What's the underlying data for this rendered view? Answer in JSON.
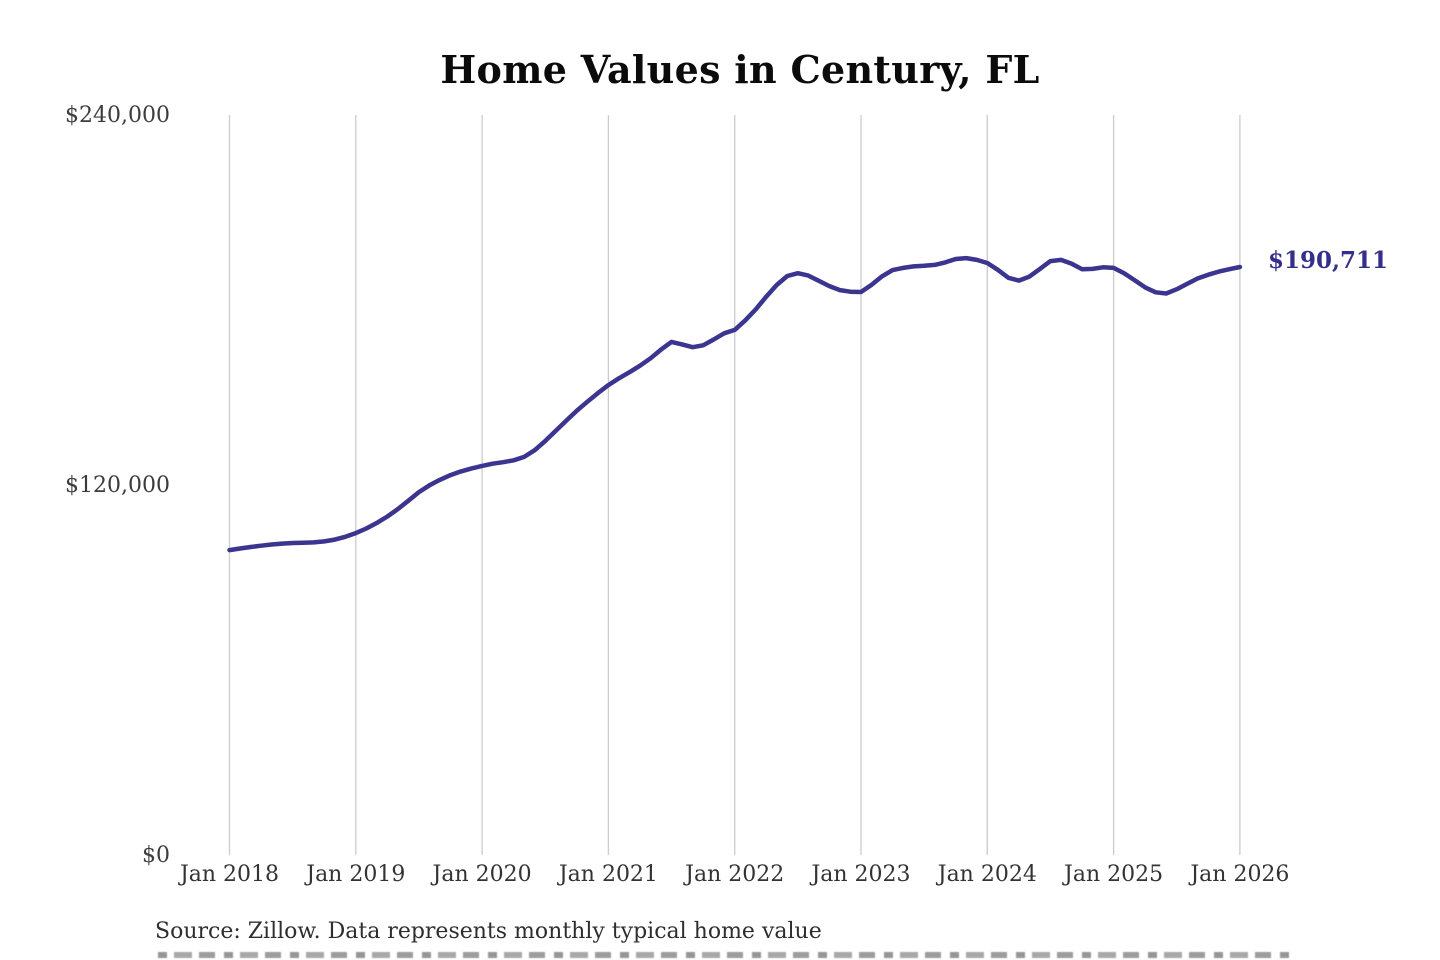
{
  "title": "Home Values in Century, FL",
  "footer": {
    "source_note": "Source: Zillow. Data represents monthly typical home value",
    "second_line_partially_visible": true
  },
  "colors": {
    "line": "#3c3590",
    "end_label": "#352f8c",
    "grid": "#cccccc",
    "title_text": "#0b0b0b",
    "axis_text": "#3c3c3c",
    "source_text": "#2e2e2e",
    "background": "#ffffff"
  },
  "chart_data": {
    "type": "line",
    "title": "Home Values in Century, FL",
    "xlabel": "",
    "ylabel": "",
    "x_start": "Jan 2018",
    "x_end": "Jan 2026",
    "frequency": "monthly",
    "x_tick_labels": [
      "Jan 2018",
      "Jan 2019",
      "Jan 2020",
      "Jan 2021",
      "Jan 2022",
      "Jan 2023",
      "Jan 2024",
      "Jan 2025",
      "Jan 2026"
    ],
    "y_ticks": [
      0,
      120000,
      240000
    ],
    "y_tick_labels": [
      "$0",
      "$120,000",
      "$240,000"
    ],
    "ylim": [
      0,
      240000
    ],
    "grid": "vertical-only",
    "legend": "none",
    "latest_value": 190711,
    "latest_value_label": "$190,711",
    "series": [
      {
        "name": "Typical home value",
        "values": [
          98900,
          99400,
          99900,
          100300,
          100700,
          101000,
          101200,
          101300,
          101400,
          101700,
          102300,
          103200,
          104400,
          105900,
          107700,
          109800,
          112200,
          114900,
          117700,
          119900,
          121700,
          123200,
          124400,
          125400,
          126200,
          126900,
          127400,
          128000,
          129100,
          131300,
          134300,
          137600,
          140900,
          144100,
          147000,
          149800,
          152400,
          154600,
          156600,
          158700,
          161100,
          163900,
          166400,
          165600,
          164700,
          165300,
          167200,
          169200,
          170300,
          173400,
          177000,
          181100,
          184900,
          187800,
          188700,
          187900,
          186200,
          184500,
          183200,
          182700,
          182600,
          184900,
          187700,
          189700,
          190400,
          190900,
          191100,
          191400,
          192200,
          193300,
          193600,
          193000,
          192000,
          189800,
          187200,
          186300,
          187600,
          190100,
          192600,
          193000,
          191800,
          190000,
          190100,
          190600,
          190400,
          188700,
          186400,
          184100,
          182500,
          182100,
          183500,
          185300,
          187000,
          188200,
          189200,
          190000,
          190711
        ]
      }
    ]
  }
}
